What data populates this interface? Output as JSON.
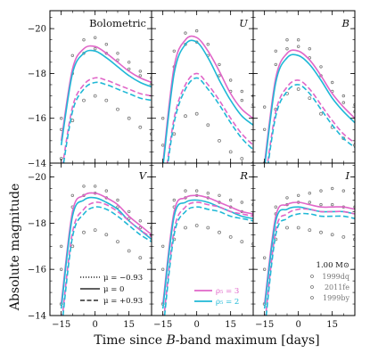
{
  "chart_data": {
    "type": "line",
    "ylabel": "Absolute magnitude",
    "xlabel": "Time since B-band maximum [days]",
    "xlabel_parts": [
      "Time since ",
      "B",
      "-band maximum [days]"
    ],
    "x_ticks": [
      "−15",
      "0",
      "15"
    ],
    "y_ticks": [
      "−20",
      "−18",
      "−16",
      "−14"
    ],
    "xlim": [
      -20,
      25
    ],
    "ylim_top_row": [
      -14,
      -20.8
    ],
    "ylim_bottom_row": [
      -14,
      -20.6
    ],
    "colors": {
      "rho3": "#e066c8",
      "rho2": "#1fb8d6",
      "obs": "#777777"
    },
    "panels": [
      {
        "label": "Bolometric",
        "italic": false,
        "x": [
          -15,
          -10,
          -5,
          0,
          5,
          10,
          15,
          20,
          25
        ],
        "model_rho3": [
          -15.0,
          -18.2,
          -19.1,
          -19.2,
          -18.9,
          -18.5,
          -18.1,
          -17.8,
          -17.6
        ],
        "model_rho2": [
          -14.8,
          -18.0,
          -18.9,
          -19.0,
          -18.7,
          -18.3,
          -17.9,
          -17.6,
          -17.4
        ],
        "model_dashed_rho3": [
          -13.5,
          -16.5,
          -17.5,
          -17.8,
          -17.7,
          -17.5,
          -17.3,
          -17.1,
          -17.0
        ],
        "model_dashed_rho2": [
          -13.3,
          -16.3,
          -17.3,
          -17.6,
          -17.5,
          -17.3,
          -17.1,
          -16.9,
          -16.8
        ],
        "obs_1999dq": [
          -16.0,
          -18.8,
          -19.5,
          -19.6,
          -19.3,
          -18.9,
          -18.5,
          -18.1,
          -17.8
        ],
        "obs_2011fe": [
          -15.5,
          -18.0,
          -18.9,
          -19.1,
          -18.9,
          -18.6,
          -18.2,
          -17.9,
          -17.6
        ],
        "obs_1999by": [
          -14.2,
          -15.9,
          -16.8,
          -17.0,
          -16.8,
          -16.4,
          -16.0,
          -15.6,
          -15.3
        ]
      },
      {
        "label": "U",
        "italic": true,
        "x": [
          -15,
          -10,
          -5,
          0,
          5,
          10,
          15,
          20,
          25
        ],
        "model_rho3": [
          -14.0,
          -18.3,
          -19.5,
          -19.6,
          -19.0,
          -18.1,
          -17.1,
          -16.4,
          -16.0
        ],
        "model_rho2": [
          -13.8,
          -18.0,
          -19.3,
          -19.4,
          -18.7,
          -17.7,
          -16.8,
          -16.1,
          -15.7
        ],
        "model_dashed_rho3": [
          -12.5,
          -16.0,
          -17.5,
          -18.0,
          -17.5,
          -16.8,
          -16.0,
          -15.3,
          -14.8
        ],
        "model_dashed_rho2": [
          -12.3,
          -15.8,
          -17.3,
          -17.8,
          -17.3,
          -16.6,
          -15.8,
          -15.1,
          -14.6
        ],
        "obs_1999dq": [
          -16.0,
          -19.0,
          -19.8,
          -19.9,
          -19.3,
          -18.4,
          -17.7,
          -17.2,
          -17.0
        ],
        "obs_2011fe": [
          -14.8,
          -18.3,
          -19.3,
          -19.4,
          -18.8,
          -17.9,
          -17.2,
          -16.8,
          -16.6
        ],
        "obs_1999by": [
          -13.0,
          -15.3,
          -16.1,
          -16.2,
          -15.7,
          -15.0,
          -14.5,
          -14.2,
          -14.0
        ]
      },
      {
        "label": "B",
        "italic": true,
        "x": [
          -15,
          -10,
          -5,
          0,
          5,
          10,
          15,
          20,
          25
        ],
        "model_rho3": [
          -14.0,
          -17.8,
          -18.9,
          -19.0,
          -18.6,
          -17.9,
          -17.1,
          -16.5,
          -16.0
        ],
        "model_rho2": [
          -13.8,
          -17.6,
          -18.7,
          -18.8,
          -18.4,
          -17.7,
          -16.9,
          -16.3,
          -15.8
        ],
        "model_dashed_rho3": [
          -13.0,
          -16.3,
          -17.4,
          -17.7,
          -17.3,
          -16.6,
          -15.9,
          -15.3,
          -14.9
        ],
        "model_dashed_rho2": [
          -12.8,
          -16.1,
          -17.2,
          -17.5,
          -17.1,
          -16.4,
          -15.7,
          -15.1,
          -14.7
        ],
        "obs_1999dq": [
          -16.5,
          -19.0,
          -19.5,
          -19.5,
          -19.1,
          -18.3,
          -17.6,
          -17.0,
          -16.6
        ],
        "obs_2011fe": [
          -15.5,
          -18.4,
          -19.1,
          -19.2,
          -18.7,
          -17.9,
          -17.2,
          -16.7,
          -16.3
        ],
        "obs_1999by": [
          -14.0,
          -16.4,
          -17.1,
          -17.3,
          -16.9,
          -16.2,
          -15.6,
          -15.1,
          -14.8
        ]
      },
      {
        "label": "V",
        "italic": true,
        "x": [
          -15,
          -10,
          -5,
          0,
          5,
          10,
          15,
          20,
          25
        ],
        "model_rho3": [
          -14.5,
          -18.5,
          -19.2,
          -19.3,
          -19.1,
          -18.8,
          -18.3,
          -17.9,
          -17.5
        ],
        "model_rho2": [
          -14.3,
          -18.3,
          -19.0,
          -19.1,
          -18.9,
          -18.6,
          -18.1,
          -17.7,
          -17.3
        ],
        "model_dashed_rho3": [
          -13.5,
          -17.6,
          -18.6,
          -18.9,
          -18.8,
          -18.5,
          -18.1,
          -17.7,
          -17.4
        ],
        "model_dashed_rho2": [
          -13.3,
          -17.4,
          -18.4,
          -18.7,
          -18.6,
          -18.3,
          -17.9,
          -17.5,
          -17.2
        ],
        "obs_1999dq": [
          -17.0,
          -19.2,
          -19.6,
          -19.6,
          -19.4,
          -19.0,
          -18.5,
          -18.1,
          -17.8
        ],
        "obs_2011fe": [
          -16.0,
          -18.7,
          -19.2,
          -19.3,
          -19.1,
          -18.7,
          -18.2,
          -17.8,
          -17.5
        ],
        "obs_1999by": [
          -14.5,
          -17.0,
          -17.6,
          -17.7,
          -17.5,
          -17.2,
          -16.8,
          -16.5,
          -16.3
        ]
      },
      {
        "label": "R",
        "italic": true,
        "x": [
          -15,
          -10,
          -5,
          0,
          5,
          10,
          15,
          20,
          25
        ],
        "model_rho3": [
          -14.5,
          -18.5,
          -19.1,
          -19.2,
          -19.1,
          -18.9,
          -18.7,
          -18.5,
          -18.4
        ],
        "model_rho2": [
          -14.3,
          -18.3,
          -18.9,
          -19.0,
          -18.9,
          -18.7,
          -18.5,
          -18.3,
          -18.2
        ],
        "model_dashed_rho3": [
          -13.5,
          -17.7,
          -18.7,
          -18.9,
          -18.8,
          -18.7,
          -18.5,
          -18.4,
          -18.3
        ],
        "model_dashed_rho2": [
          -13.3,
          -17.5,
          -18.5,
          -18.7,
          -18.6,
          -18.5,
          -18.3,
          -18.2,
          -18.1
        ],
        "obs_1999dq": [
          -17.0,
          -19.0,
          -19.4,
          -19.4,
          -19.3,
          -19.2,
          -19.0,
          -18.9,
          -18.8
        ],
        "obs_2011fe": [
          -16.0,
          -18.7,
          -19.1,
          -19.2,
          -19.1,
          -18.9,
          -18.7,
          -18.5,
          -18.4
        ],
        "obs_1999by": [
          -14.5,
          -17.3,
          -17.8,
          -17.9,
          -17.8,
          -17.6,
          -17.4,
          -17.2,
          -17.1
        ]
      },
      {
        "label": "I",
        "italic": true,
        "x": [
          -15,
          -10,
          -5,
          0,
          5,
          10,
          15,
          20,
          25
        ],
        "model_rho3": [
          -14.5,
          -18.3,
          -18.8,
          -18.9,
          -18.8,
          -18.7,
          -18.7,
          -18.7,
          -18.6
        ],
        "model_rho2": [
          -14.3,
          -18.1,
          -18.6,
          -18.7,
          -18.6,
          -18.5,
          -18.5,
          -18.5,
          -18.4
        ],
        "model_dashed_rho3": [
          -13.5,
          -17.7,
          -18.4,
          -18.6,
          -18.6,
          -18.5,
          -18.5,
          -18.5,
          -18.4
        ],
        "model_dashed_rho2": [
          -13.3,
          -17.5,
          -18.2,
          -18.4,
          -18.4,
          -18.3,
          -18.3,
          -18.3,
          -18.2
        ],
        "obs_1999dq": [
          -16.5,
          -18.7,
          -19.1,
          -19.2,
          -19.3,
          -19.4,
          -19.5,
          -19.4,
          -19.3
        ],
        "obs_2011fe": [
          -16.0,
          -18.4,
          -18.8,
          -18.9,
          -18.9,
          -18.8,
          -18.8,
          -18.7,
          -18.7
        ],
        "obs_1999by": [
          -14.5,
          -17.3,
          -17.8,
          -17.8,
          -17.7,
          -17.6,
          -17.5,
          -17.4,
          -17.3
        ]
      }
    ],
    "legend_linestyle": [
      {
        "text": "μ = −0.93",
        "style": "dotted"
      },
      {
        "text": "μ = 0",
        "style": "solid"
      },
      {
        "text": "μ = +0.93",
        "style": "dashed"
      }
    ],
    "legend_density": [
      {
        "text": "ρ₅ = 3",
        "color": "#e066c8"
      },
      {
        "text": "ρ₅ = 2",
        "color": "#1fb8d6"
      }
    ],
    "legend_obs": {
      "title": "1.00 M⊙",
      "entries": [
        "1999dq",
        "2011fe",
        "1999by"
      ]
    }
  }
}
